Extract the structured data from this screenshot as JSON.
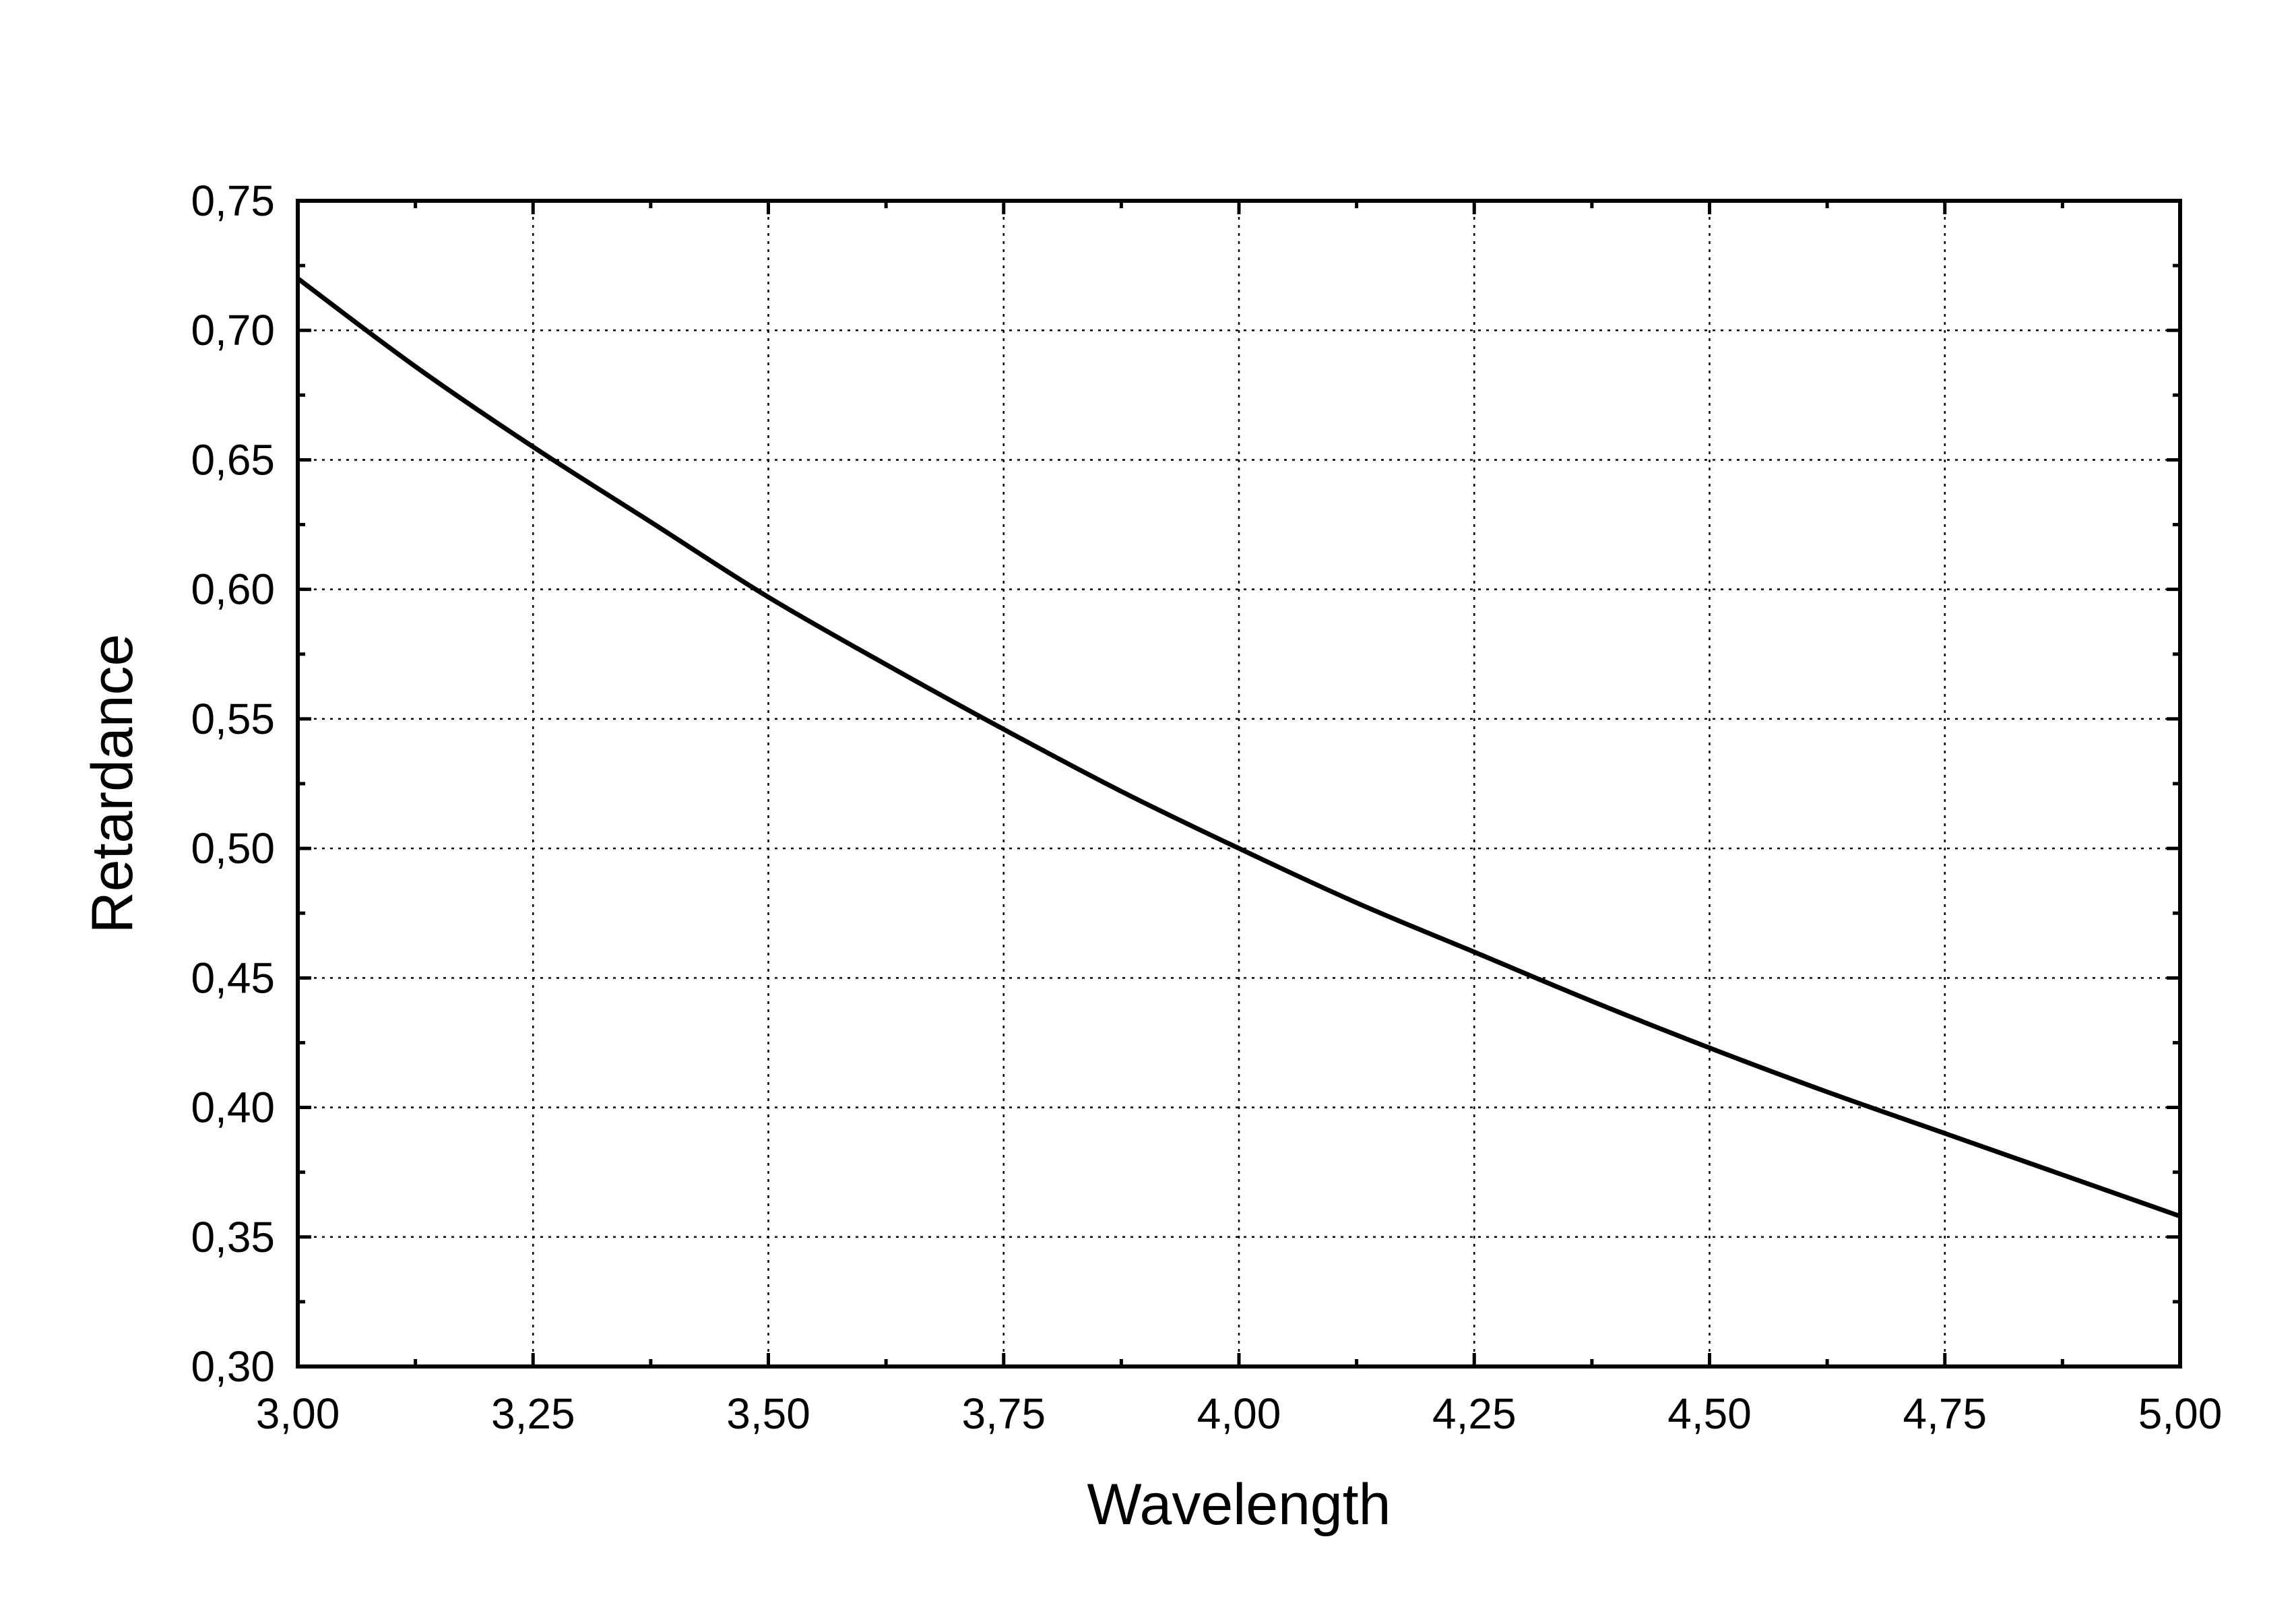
{
  "chart_data": {
    "type": "line",
    "xlabel": "Wavelength",
    "ylabel": "Retardance",
    "xlim": [
      3.0,
      5.0
    ],
    "ylim": [
      0.3,
      0.75
    ],
    "x_ticks": [
      3.0,
      3.25,
      3.5,
      3.75,
      4.0,
      4.25,
      4.5,
      4.75,
      5.0
    ],
    "x_tick_labels": [
      "3,00",
      "3,25",
      "3,50",
      "3,75",
      "4,00",
      "4,25",
      "4,50",
      "4,75",
      "5,00"
    ],
    "y_ticks": [
      0.3,
      0.35,
      0.4,
      0.45,
      0.5,
      0.55,
      0.6,
      0.65,
      0.7,
      0.75
    ],
    "y_tick_labels": [
      "0,30",
      "0,35",
      "0,40",
      "0,45",
      "0,50",
      "0,55",
      "0,60",
      "0,65",
      "0,70",
      "0,75"
    ],
    "grid": true,
    "series": [
      {
        "color": "#000000",
        "x": [
          3.0,
          3.125,
          3.25,
          3.375,
          3.5,
          3.625,
          3.75,
          3.875,
          4.0,
          4.125,
          4.25,
          4.375,
          4.5,
          4.625,
          4.75,
          4.875,
          5.0
        ],
        "y": [
          0.72,
          0.686,
          0.655,
          0.626,
          0.597,
          0.571,
          0.546,
          0.522,
          0.5,
          0.479,
          0.46,
          0.441,
          0.423,
          0.406,
          0.39,
          0.374,
          0.358
        ]
      }
    ]
  }
}
